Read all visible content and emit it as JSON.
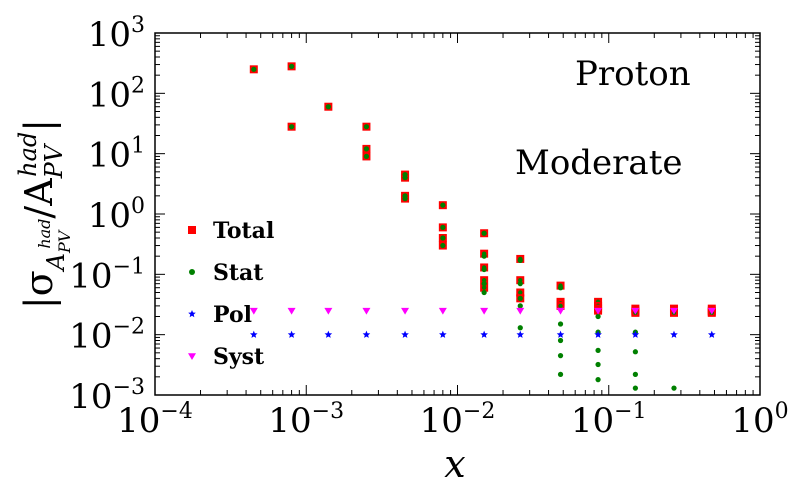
{
  "chart_data": {
    "type": "scatter",
    "xscale": "log",
    "yscale": "log",
    "xlim": [
      0.0001,
      1
    ],
    "ylim": [
      0.001,
      1000
    ],
    "xlabel": "x",
    "ylabel": "|σ_{A_{PV}^{had}}/A_{PV}^{had}|",
    "x_tick_labels": [
      "10^{-4}",
      "10^{-3}",
      "10^{-2}",
      "10^{-1}",
      "10^{0}"
    ],
    "y_tick_labels": [
      "10^{-3}",
      "10^{-2}",
      "10^{-1}",
      "10^{0}",
      "10^{1}",
      "10^{2}",
      "10^{3}"
    ],
    "annotations": [
      "Proton",
      "Moderate"
    ],
    "legend_position": "center-left",
    "series": [
      {
        "name": "Total",
        "marker": "square",
        "color": "#ff0000",
        "points": [
          [
            0.00045,
            250
          ],
          [
            0.0008,
            280
          ],
          [
            0.0008,
            28
          ],
          [
            0.0014,
            60
          ],
          [
            0.0025,
            28
          ],
          [
            0.0025,
            12
          ],
          [
            0.0025,
            9
          ],
          [
            0.0045,
            4.5
          ],
          [
            0.0045,
            4.0
          ],
          [
            0.0045,
            2.0
          ],
          [
            0.0045,
            1.8
          ],
          [
            0.008,
            1.4
          ],
          [
            0.008,
            0.6
          ],
          [
            0.008,
            0.4
          ],
          [
            0.008,
            0.3
          ],
          [
            0.015,
            0.48
          ],
          [
            0.015,
            0.22
          ],
          [
            0.015,
            0.13
          ],
          [
            0.015,
            0.08
          ],
          [
            0.015,
            0.06
          ],
          [
            0.026,
            0.18
          ],
          [
            0.026,
            0.08
          ],
          [
            0.026,
            0.05
          ],
          [
            0.026,
            0.04
          ],
          [
            0.048,
            0.065
          ],
          [
            0.048,
            0.035
          ],
          [
            0.048,
            0.033
          ],
          [
            0.048,
            0.03
          ],
          [
            0.085,
            0.035
          ],
          [
            0.085,
            0.03
          ],
          [
            0.085,
            0.027
          ],
          [
            0.085,
            0.025
          ],
          [
            0.15,
            0.027
          ],
          [
            0.15,
            0.025
          ],
          [
            0.15,
            0.024
          ],
          [
            0.15,
            0.023
          ],
          [
            0.27,
            0.027
          ],
          [
            0.27,
            0.025
          ],
          [
            0.27,
            0.024
          ],
          [
            0.27,
            0.023
          ],
          [
            0.48,
            0.027
          ],
          [
            0.48,
            0.025
          ],
          [
            0.48,
            0.024
          ],
          [
            0.48,
            0.023
          ]
        ]
      },
      {
        "name": "Stat",
        "marker": "circle",
        "color": "#008000",
        "points": [
          [
            0.00045,
            250
          ],
          [
            0.0008,
            280
          ],
          [
            0.0008,
            28
          ],
          [
            0.0014,
            60
          ],
          [
            0.0025,
            28
          ],
          [
            0.0025,
            12
          ],
          [
            0.0025,
            9
          ],
          [
            0.0045,
            4.5
          ],
          [
            0.0045,
            4.0
          ],
          [
            0.0045,
            2.0
          ],
          [
            0.0045,
            1.8
          ],
          [
            0.008,
            1.4
          ],
          [
            0.008,
            0.6
          ],
          [
            0.008,
            0.4
          ],
          [
            0.008,
            0.3
          ],
          [
            0.015,
            0.48
          ],
          [
            0.015,
            0.2
          ],
          [
            0.015,
            0.12
          ],
          [
            0.015,
            0.07
          ],
          [
            0.015,
            0.05
          ],
          [
            0.026,
            0.17
          ],
          [
            0.026,
            0.07
          ],
          [
            0.026,
            0.04
          ],
          [
            0.026,
            0.03
          ],
          [
            0.026,
            0.013
          ],
          [
            0.048,
            0.06
          ],
          [
            0.048,
            0.015
          ],
          [
            0.048,
            0.008
          ],
          [
            0.048,
            0.0045
          ],
          [
            0.048,
            0.0022
          ],
          [
            0.085,
            0.02
          ],
          [
            0.085,
            0.011
          ],
          [
            0.085,
            0.0055
          ],
          [
            0.085,
            0.0032
          ],
          [
            0.085,
            0.0018
          ],
          [
            0.15,
            0.011
          ],
          [
            0.15,
            0.0052
          ],
          [
            0.15,
            0.0022
          ],
          [
            0.15,
            0.0013
          ],
          [
            0.27,
            0.0013
          ]
        ]
      },
      {
        "name": "Pol",
        "marker": "star",
        "color": "#0000ff",
        "points": [
          [
            0.00045,
            0.01
          ],
          [
            0.0008,
            0.01
          ],
          [
            0.0014,
            0.01
          ],
          [
            0.0025,
            0.01
          ],
          [
            0.0045,
            0.01
          ],
          [
            0.008,
            0.01
          ],
          [
            0.015,
            0.01
          ],
          [
            0.026,
            0.01
          ],
          [
            0.048,
            0.01
          ],
          [
            0.085,
            0.01
          ],
          [
            0.15,
            0.01
          ],
          [
            0.27,
            0.01
          ],
          [
            0.48,
            0.01
          ]
        ]
      },
      {
        "name": "Syst",
        "marker": "triangle-down",
        "color": "#ff00ff",
        "points": [
          [
            0.00045,
            0.025
          ],
          [
            0.0008,
            0.025
          ],
          [
            0.0014,
            0.025
          ],
          [
            0.0025,
            0.025
          ],
          [
            0.0045,
            0.025
          ],
          [
            0.008,
            0.025
          ],
          [
            0.015,
            0.025
          ],
          [
            0.026,
            0.025
          ],
          [
            0.048,
            0.025
          ],
          [
            0.085,
            0.025
          ],
          [
            0.15,
            0.025
          ],
          [
            0.27,
            0.025
          ],
          [
            0.48,
            0.025
          ]
        ]
      }
    ]
  }
}
